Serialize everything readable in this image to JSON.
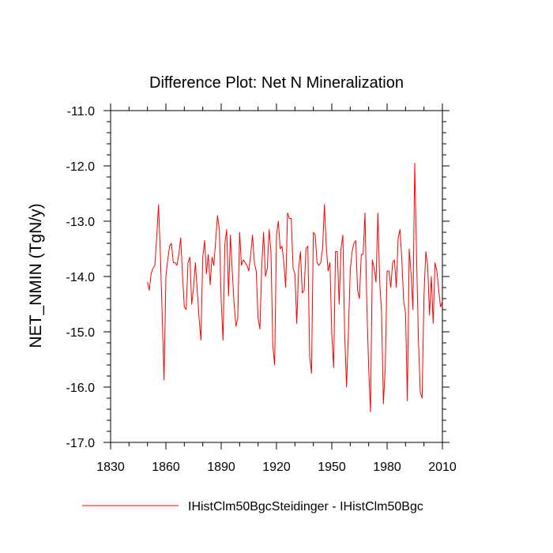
{
  "chart_data": {
    "type": "line",
    "title": "Difference Plot: Net N Mineralization",
    "xlabel": "",
    "ylabel": "NET_NMIN  (TgN/y)",
    "xlim": [
      1830,
      2010
    ],
    "ylim": [
      -17.0,
      -11.0
    ],
    "x_ticks": [
      1830,
      1860,
      1890,
      1920,
      1950,
      1980,
      2010
    ],
    "y_ticks": [
      -11.0,
      -12.0,
      -13.0,
      -14.0,
      -15.0,
      -16.0,
      -17.0
    ],
    "x_tick_labels": [
      "1830",
      "1860",
      "1890",
      "1920",
      "1950",
      "1980",
      "2010"
    ],
    "y_tick_labels": [
      "-11.0",
      "-12.0",
      "-13.0",
      "-14.0",
      "-15.0",
      "-16.0",
      "-17.0"
    ],
    "grid": false,
    "legend_position": "bottom",
    "series": [
      {
        "name": "IHistClm50BgcSteidinger - IHistClm50Bgc",
        "color": "#ff0000",
        "x": [
          1850,
          1851,
          1852,
          1853,
          1854,
          1855,
          1856,
          1857,
          1858,
          1859,
          1860,
          1861,
          1862,
          1863,
          1864,
          1865,
          1866,
          1867,
          1868,
          1869,
          1870,
          1871,
          1872,
          1873,
          1874,
          1875,
          1876,
          1877,
          1878,
          1879,
          1880,
          1881,
          1882,
          1883,
          1884,
          1885,
          1886,
          1887,
          1888,
          1889,
          1890,
          1891,
          1892,
          1893,
          1894,
          1895,
          1896,
          1897,
          1898,
          1899,
          1900,
          1901,
          1902,
          1903,
          1904,
          1905,
          1906,
          1907,
          1908,
          1909,
          1910,
          1911,
          1912,
          1913,
          1914,
          1915,
          1916,
          1917,
          1918,
          1919,
          1920,
          1921,
          1922,
          1923,
          1924,
          1925,
          1926,
          1927,
          1928,
          1929,
          1930,
          1931,
          1932,
          1933,
          1934,
          1935,
          1936,
          1937,
          1938,
          1939,
          1940,
          1941,
          1942,
          1943,
          1944,
          1945,
          1946,
          1947,
          1948,
          1949,
          1950,
          1951,
          1952,
          1953,
          1954,
          1955,
          1956,
          1957,
          1958,
          1959,
          1960,
          1961,
          1962,
          1963,
          1964,
          1965,
          1966,
          1967,
          1968,
          1969,
          1970,
          1971,
          1972,
          1973,
          1974,
          1975,
          1976,
          1977,
          1978,
          1979,
          1980,
          1981,
          1982,
          1983,
          1984,
          1985,
          1986,
          1987,
          1988,
          1989,
          1990,
          1991,
          1992,
          1993,
          1994,
          1995,
          1996,
          1997,
          1998,
          1999,
          2000,
          2001,
          2002,
          2003,
          2004,
          2005,
          2006,
          2007,
          2008,
          2009,
          2010
        ],
        "values": [
          -14.1,
          -14.25,
          -13.95,
          -13.85,
          -13.8,
          -13.3,
          -12.7,
          -13.6,
          -14.7,
          -15.87,
          -14.0,
          -13.7,
          -13.45,
          -13.4,
          -13.75,
          -13.75,
          -13.8,
          -13.6,
          -13.3,
          -13.95,
          -14.55,
          -14.6,
          -13.75,
          -13.65,
          -14.5,
          -14.2,
          -13.75,
          -14.25,
          -14.75,
          -15.15,
          -13.65,
          -13.35,
          -13.95,
          -13.6,
          -14.15,
          -13.65,
          -13.8,
          -13.35,
          -12.9,
          -13.15,
          -14.45,
          -15.15,
          -13.4,
          -13.15,
          -14.35,
          -13.25,
          -13.9,
          -14.5,
          -14.9,
          -14.75,
          -13.2,
          -13.8,
          -13.7,
          -13.75,
          -13.8,
          -13.9,
          -13.6,
          -13.25,
          -13.75,
          -13.9,
          -14.75,
          -14.95,
          -13.8,
          -13.2,
          -14.0,
          -13.85,
          -13.15,
          -13.55,
          -15.25,
          -15.6,
          -13.25,
          -13.0,
          -13.5,
          -13.45,
          -13.75,
          -14.2,
          -12.85,
          -12.95,
          -12.95,
          -13.85,
          -13.95,
          -14.85,
          -13.85,
          -13.55,
          -14.3,
          -14.25,
          -13.5,
          -13.45,
          -15.45,
          -15.75,
          -13.2,
          -13.25,
          -13.75,
          -13.8,
          -13.75,
          -13.5,
          -12.7,
          -13.45,
          -13.9,
          -13.75,
          -15.05,
          -15.65,
          -13.55,
          -13.55,
          -14.5,
          -13.5,
          -13.25,
          -15.05,
          -16.0,
          -15.0,
          -13.9,
          -13.55,
          -13.4,
          -13.35,
          -14.25,
          -14.4,
          -13.6,
          -13.6,
          -12.85,
          -14.5,
          -15.65,
          -16.45,
          -13.7,
          -13.85,
          -14.1,
          -12.85,
          -14.1,
          -14.65,
          -16.3,
          -15.65,
          -13.9,
          -13.9,
          -14.2,
          -13.75,
          -13.7,
          -14.2,
          -13.3,
          -13.15,
          -13.7,
          -14.45,
          -14.65,
          -16.25,
          -13.5,
          -13.95,
          -14.6,
          -11.95,
          -13.65,
          -15.15,
          -16.1,
          -16.2,
          -14.35,
          -13.55,
          -13.8,
          -14.7,
          -14.0,
          -14.85,
          -13.75,
          -13.9,
          -14.25,
          -14.55,
          -14.45
        ]
      }
    ]
  }
}
